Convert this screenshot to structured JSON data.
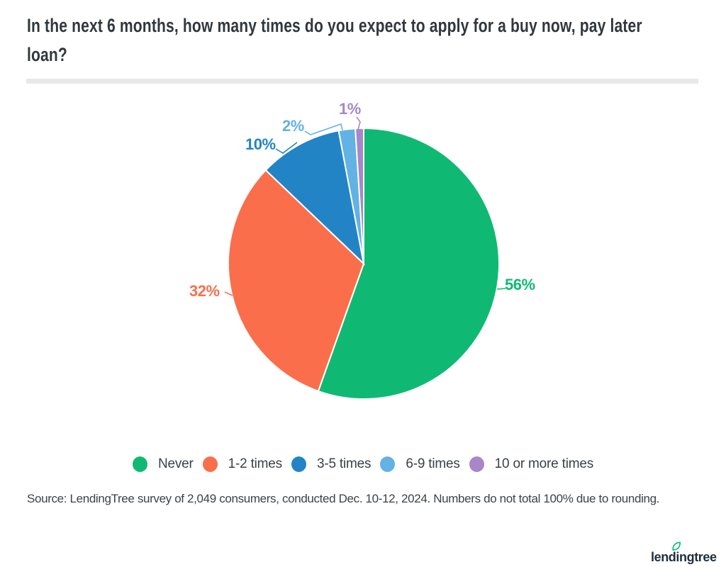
{
  "page": {
    "title_line1": "In the next 6 months, how many times do you expect to apply for a buy now, pay later",
    "title_line2": "loan?",
    "source_note": "Source: LendingTree survey of 2,049 consumers, conducted Dec. 10-12, 2024. Numbers do not total 100% due to rounding.",
    "logo_text": "lendingtree",
    "logo_text_color": "#1E2F3C",
    "logo_leaf_color": "#00BD70",
    "title_color": "#31373E",
    "divider_color": "#E8E8E8",
    "legend_text_color": "#3A4149"
  },
  "chart_data": {
    "type": "pie",
    "title": "In the next 6 months, how many times do you expect to apply for a buy now, pay later loan?",
    "start_angle_deg": 0,
    "direction": "clockwise",
    "values_total": 101,
    "legend_position": "bottom",
    "note": "Numbers do not total 100% due to rounding.",
    "slices": [
      {
        "label": "Never",
        "value": 56,
        "value_label": "56%",
        "color": "#10B973"
      },
      {
        "label": "1-2 times",
        "value": 32,
        "value_label": "32%",
        "color": "#FA6E4C"
      },
      {
        "label": "3-5 times",
        "value": 10,
        "value_label": "10%",
        "color": "#2284C4"
      },
      {
        "label": "6-9 times",
        "value": 2,
        "value_label": "2%",
        "color": "#62B2E4"
      },
      {
        "label": "10 or more times",
        "value": 1,
        "value_label": "1%",
        "color": "#A886C7"
      }
    ]
  }
}
